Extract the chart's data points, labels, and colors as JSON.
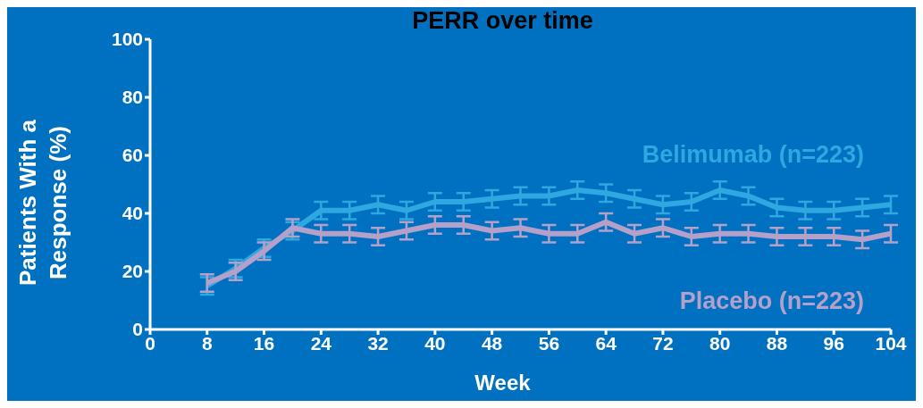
{
  "chart_data": {
    "type": "line",
    "title": "PERR over time",
    "xlabel": "Week",
    "ylabel": "Patients With a Response (%)",
    "x": [
      8,
      12,
      16,
      20,
      24,
      28,
      32,
      36,
      40,
      44,
      48,
      52,
      56,
      60,
      64,
      68,
      72,
      76,
      80,
      84,
      88,
      92,
      96,
      100,
      104
    ],
    "series": [
      {
        "name": "Belimumab (n=223)",
        "color": "#2ea8e0",
        "values": [
          15,
          21,
          28,
          34,
          41,
          41,
          43,
          41,
          44,
          44,
          45,
          46,
          46,
          48,
          47,
          45,
          43,
          44,
          48,
          46,
          42,
          41,
          41,
          42,
          43
        ],
        "errors": [
          3,
          3,
          3,
          3,
          3,
          3,
          3,
          3,
          3,
          3,
          3,
          3,
          3,
          3,
          3,
          3,
          3,
          3,
          3,
          3,
          3,
          3,
          3,
          3,
          3
        ]
      },
      {
        "name": "Placebo (n=223)",
        "color": "#b4a0c8",
        "values": [
          16,
          20,
          27,
          35,
          33,
          33,
          32,
          34,
          36,
          36,
          34,
          35,
          33,
          33,
          37,
          33,
          35,
          32,
          33,
          33,
          32,
          32,
          32,
          31,
          33
        ],
        "errors": [
          3,
          3,
          3,
          3,
          3,
          3,
          3,
          3,
          3,
          3,
          3,
          3,
          3,
          3,
          3,
          3,
          3,
          3,
          3,
          3,
          3,
          3,
          3,
          3,
          3
        ]
      }
    ],
    "xlim": [
      0,
      104
    ],
    "xticks": [
      0,
      8,
      16,
      24,
      32,
      40,
      48,
      56,
      64,
      72,
      80,
      88,
      96,
      104
    ],
    "ylim": [
      0,
      100
    ],
    "yticks": [
      0,
      20,
      40,
      60,
      80,
      100
    ],
    "grid": false,
    "legend": false,
    "marker": "none",
    "line_style": "solid"
  }
}
